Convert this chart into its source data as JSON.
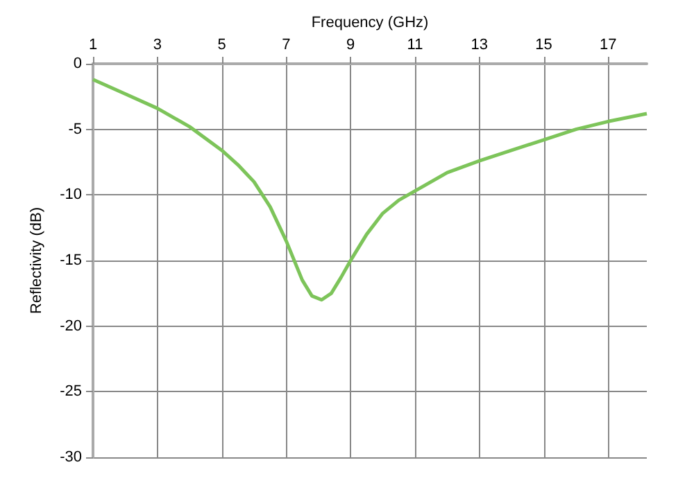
{
  "chart_data": {
    "type": "line",
    "xlabel": "Frequency (GHz)",
    "ylabel": "Reflectivity (dB)",
    "x": [
      1,
      2,
      3,
      4,
      5,
      5.5,
      6,
      6.5,
      7,
      7.5,
      7.8,
      8.1,
      8.4,
      8.7,
      9,
      9.5,
      10,
      10.5,
      11,
      12,
      13,
      14,
      15,
      16,
      17,
      18.2
    ],
    "series": [
      {
        "color": "#7dc45a",
        "values": [
          -1.2,
          -2.3,
          -3.4,
          -4.8,
          -6.6,
          -7.7,
          -9,
          -10.9,
          -13.5,
          -16.5,
          -17.7,
          -18,
          -17.5,
          -16.3,
          -15,
          -13,
          -11.4,
          -10.4,
          -9.7,
          -8.3,
          -7.4,
          -6.6,
          -5.8,
          -5,
          -4.4,
          -3.8
        ]
      }
    ],
    "xlim": [
      1,
      18.2
    ],
    "xticks": [
      1,
      3,
      5,
      7,
      9,
      11,
      13,
      15,
      17
    ],
    "ylim": [
      -30,
      0
    ],
    "yticks": [
      -30,
      -25,
      -20,
      -15,
      -10,
      -5,
      0
    ],
    "grid": true,
    "marker": "none",
    "line_style": "solid"
  }
}
